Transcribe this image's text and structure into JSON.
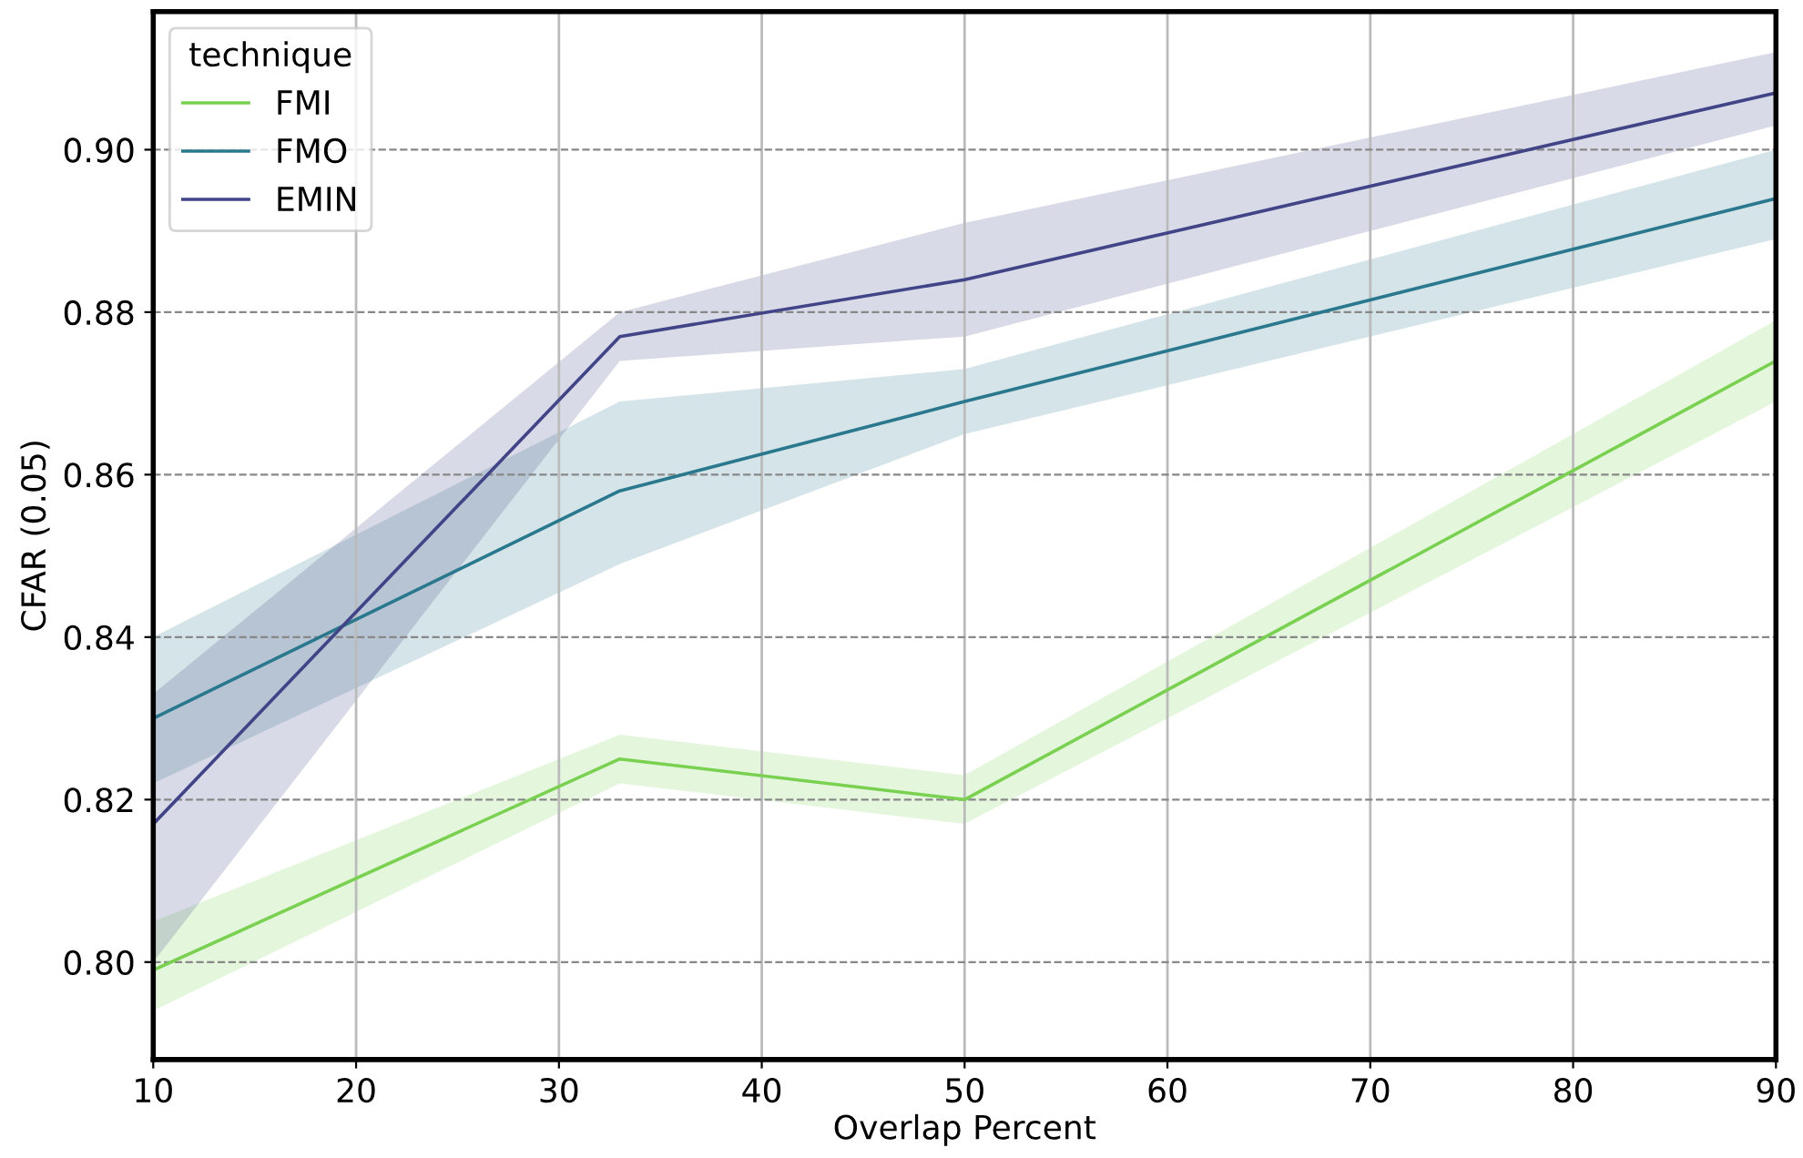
{
  "chart_data": {
    "type": "line",
    "xlabel": "Overlap Percent",
    "ylabel": "CFAR (0.05)",
    "legend_title": "technique",
    "legend": "top left",
    "grid": true,
    "x": [
      10,
      33,
      50,
      90
    ],
    "series": [
      {
        "name": "FMI",
        "color": "#7ad151",
        "values": [
          0.799,
          0.825,
          0.82,
          0.874
        ],
        "lower": [
          0.794,
          0.822,
          0.817,
          0.869
        ],
        "upper": [
          0.805,
          0.828,
          0.823,
          0.879
        ]
      },
      {
        "name": "FMO",
        "color": "#2a788e",
        "values": [
          0.83,
          0.858,
          0.869,
          0.894
        ],
        "lower": [
          0.822,
          0.849,
          0.865,
          0.889
        ],
        "upper": [
          0.84,
          0.869,
          0.873,
          0.9
        ]
      },
      {
        "name": "EMIN",
        "color": "#414487",
        "values": [
          0.817,
          0.877,
          0.884,
          0.907
        ],
        "lower": [
          0.8,
          0.874,
          0.877,
          0.903
        ],
        "upper": [
          0.833,
          0.88,
          0.891,
          0.912
        ]
      }
    ],
    "xlim": [
      10,
      90
    ],
    "ylim": [
      0.788,
      0.917
    ],
    "xticks": [
      10,
      20,
      30,
      40,
      50,
      60,
      70,
      80,
      90
    ],
    "yticks": [
      {
        "value": 0.8,
        "label": "0.80"
      },
      {
        "value": 0.82,
        "label": "0.82"
      },
      {
        "value": 0.84,
        "label": "0.84"
      },
      {
        "value": 0.86,
        "label": "0.86"
      },
      {
        "value": 0.88,
        "label": "0.88"
      },
      {
        "value": 0.9,
        "label": "0.90"
      }
    ]
  }
}
